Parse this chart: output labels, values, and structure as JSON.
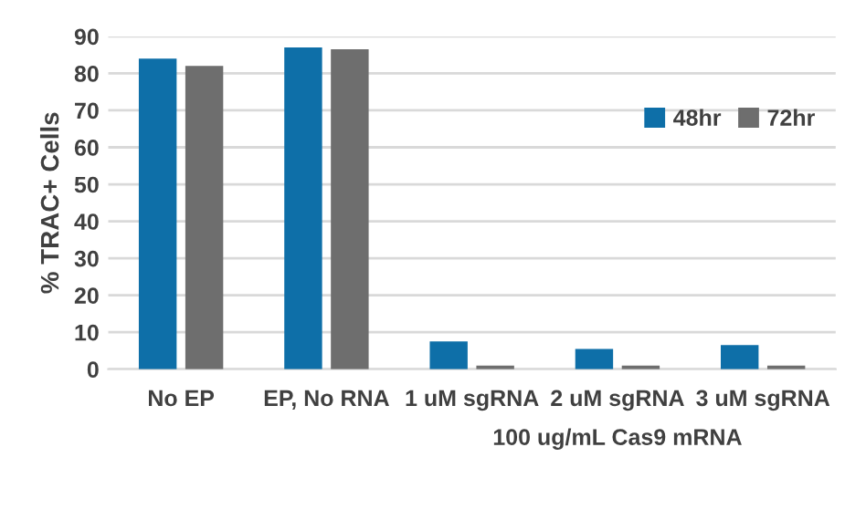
{
  "chart_data": {
    "type": "bar",
    "ylabel": "% TRAC+ Cells",
    "categories": [
      "No EP",
      "EP, No RNA",
      "1 uM sgRNA",
      "2 uM sgRNA",
      "3 uM sgRNA"
    ],
    "series": [
      {
        "name": "48hr",
        "color": "#0e6fa8",
        "values": [
          84,
          87,
          7.5,
          5.5,
          6.5
        ]
      },
      {
        "name": "72hr",
        "color": "#6e6e6e",
        "values": [
          82,
          86.5,
          1,
          1,
          1
        ]
      }
    ],
    "ylim": [
      0,
      90
    ],
    "yticks": [
      0,
      10,
      20,
      30,
      40,
      50,
      60,
      70,
      80,
      90
    ],
    "grid": "y",
    "legend": "right",
    "annotations": [
      "100 ug/mL Cas9 mRNA"
    ]
  }
}
